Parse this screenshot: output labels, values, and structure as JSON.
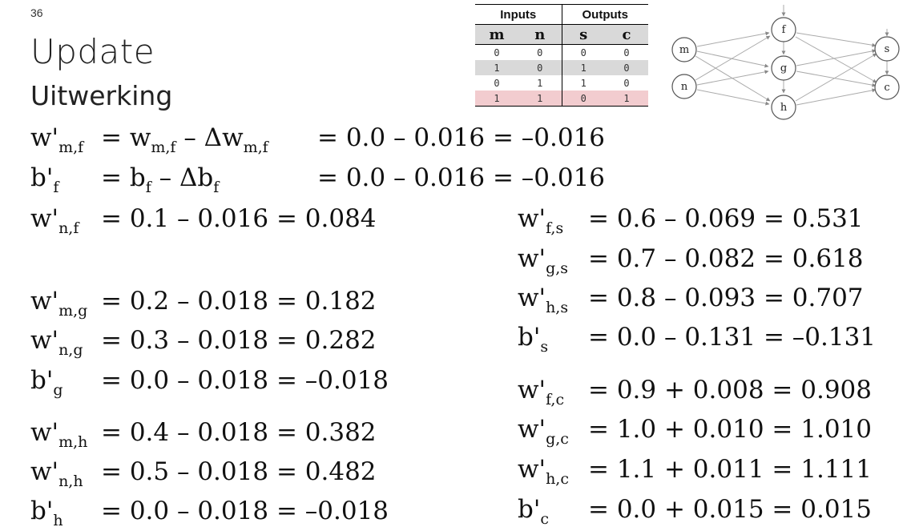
{
  "page_number": "36",
  "title": "Update",
  "subtitle": "Uitwerking",
  "truth_table": {
    "group_headers": [
      "Inputs",
      "Outputs"
    ],
    "columns": [
      "m",
      "n",
      "s",
      "c"
    ],
    "rows": [
      [
        "0",
        "0",
        "0",
        "0"
      ],
      [
        "1",
        "0",
        "1",
        "0"
      ],
      [
        "0",
        "1",
        "1",
        "0"
      ],
      [
        "1",
        "1",
        "0",
        "1"
      ]
    ],
    "highlight_colors": {
      "gray": "#d9d9d9",
      "pink": "#f2cccf"
    }
  },
  "network": {
    "nodes": [
      "m",
      "n",
      "f",
      "g",
      "h",
      "s",
      "c"
    ]
  },
  "equations": {
    "wmf": {
      "base": "w'",
      "sub": "m,f",
      "rhs_mid": "= w",
      "rhs_mid_sub": "m,f",
      "rhs_mid2": " – Δw",
      "rhs_mid2_sub": "m,f",
      "rhs": "= 0.0 – 0.016 = –0.016"
    },
    "bf": {
      "base": "b'",
      "sub": "f",
      "rhs_mid": "= b",
      "rhs_mid_sub": "f",
      "rhs_mid2": " – Δb",
      "rhs_mid2_sub": "f",
      "rhs": "= 0.0 – 0.016 = –0.016"
    },
    "wnf": {
      "base": "w'",
      "sub": "n,f",
      "rhs": "= 0.1 – 0.016 = 0.084"
    },
    "wmg": {
      "base": "w'",
      "sub": "m,g",
      "rhs": "= 0.2 – 0.018 = 0.182"
    },
    "wng": {
      "base": "w'",
      "sub": "n,g",
      "rhs": "= 0.3 – 0.018 = 0.282"
    },
    "bg": {
      "base": "b'",
      "sub": "g",
      "rhs": "= 0.0 – 0.018 = –0.018"
    },
    "wmh": {
      "base": "w'",
      "sub": "m,h",
      "rhs": "= 0.4 – 0.018 = 0.382"
    },
    "wnh": {
      "base": "w'",
      "sub": "n,h",
      "rhs": "= 0.5 – 0.018 = 0.482"
    },
    "bh": {
      "base": "b'",
      "sub": "h",
      "rhs": "= 0.0 – 0.018 = –0.018"
    },
    "wfs": {
      "base": "w'",
      "sub": "f,s",
      "rhs": "= 0.6 – 0.069 = 0.531"
    },
    "wgs": {
      "base": "w'",
      "sub": "g,s",
      "rhs": "= 0.7 – 0.082 = 0.618"
    },
    "whs": {
      "base": "w'",
      "sub": "h,s",
      "rhs": "= 0.8 – 0.093 = 0.707"
    },
    "bs": {
      "base": "b'",
      "sub": "s",
      "rhs": "= 0.0 – 0.131 = –0.131"
    },
    "wfc": {
      "base": "w'",
      "sub": "f,c",
      "rhs": "= 0.9 + 0.008 = 0.908"
    },
    "wgc": {
      "base": "w'",
      "sub": "g,c",
      "rhs": "= 1.0 + 0.010 = 1.010"
    },
    "whc": {
      "base": "w'",
      "sub": "h,c",
      "rhs": "= 1.1 + 0.011 = 1.111"
    },
    "bc": {
      "base": "b'",
      "sub": "c",
      "rhs": "= 0.0 + 0.015 = 0.015"
    }
  }
}
